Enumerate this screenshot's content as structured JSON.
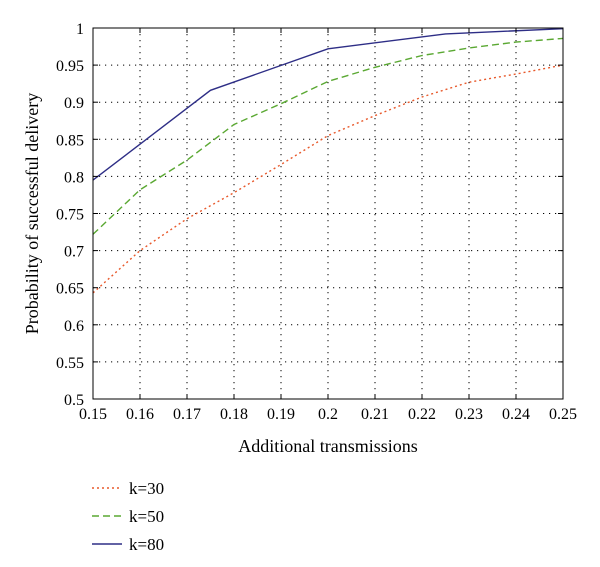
{
  "chart_data": {
    "type": "line",
    "title": "",
    "xlabel": "Additional transmissions",
    "ylabel": "Probability of successful delivery",
    "xlim": [
      0.15,
      0.25
    ],
    "ylim": [
      0.5,
      1.0
    ],
    "x_ticks": [
      0.15,
      0.16,
      0.17,
      0.18,
      0.19,
      0.2,
      0.21,
      0.22,
      0.23,
      0.24,
      0.25
    ],
    "x_tick_labels": [
      "0.15",
      "0.16",
      "0.17",
      "0.18",
      "0.19",
      "0.2",
      "0.21",
      "0.22",
      "0.23",
      "0.24",
      "0.25"
    ],
    "y_ticks": [
      0.5,
      0.55,
      0.6,
      0.65,
      0.7,
      0.75,
      0.8,
      0.85,
      0.9,
      0.95,
      1.0
    ],
    "y_tick_labels": [
      "0.5",
      "0.55",
      "0.6",
      "0.65",
      "0.7",
      "0.75",
      "0.8",
      "0.85",
      "0.9",
      "0.95",
      "1"
    ],
    "grid": true,
    "legend_position": "below-left",
    "series": [
      {
        "name": "k=30",
        "color": "#e8582a",
        "style": "dotted",
        "x": [
          0.15,
          0.16,
          0.17,
          0.18,
          0.19,
          0.2,
          0.21,
          0.22,
          0.23,
          0.24,
          0.25
        ],
        "y": [
          0.643,
          0.7,
          0.743,
          0.778,
          0.816,
          0.855,
          0.882,
          0.907,
          0.927,
          0.938,
          0.95
        ]
      },
      {
        "name": "k=50",
        "color": "#5aa832",
        "style": "dashed",
        "x": [
          0.15,
          0.16,
          0.17,
          0.18,
          0.19,
          0.2,
          0.21,
          0.22,
          0.23,
          0.24,
          0.25
        ],
        "y": [
          0.722,
          0.782,
          0.822,
          0.87,
          0.898,
          0.928,
          0.947,
          0.963,
          0.973,
          0.981,
          0.986
        ]
      },
      {
        "name": "k=80",
        "color": "#2e2e86",
        "style": "solid",
        "x": [
          0.15,
          0.175,
          0.2,
          0.225,
          0.25
        ],
        "y": [
          0.795,
          0.916,
          0.972,
          0.992,
          0.999
        ]
      }
    ]
  }
}
